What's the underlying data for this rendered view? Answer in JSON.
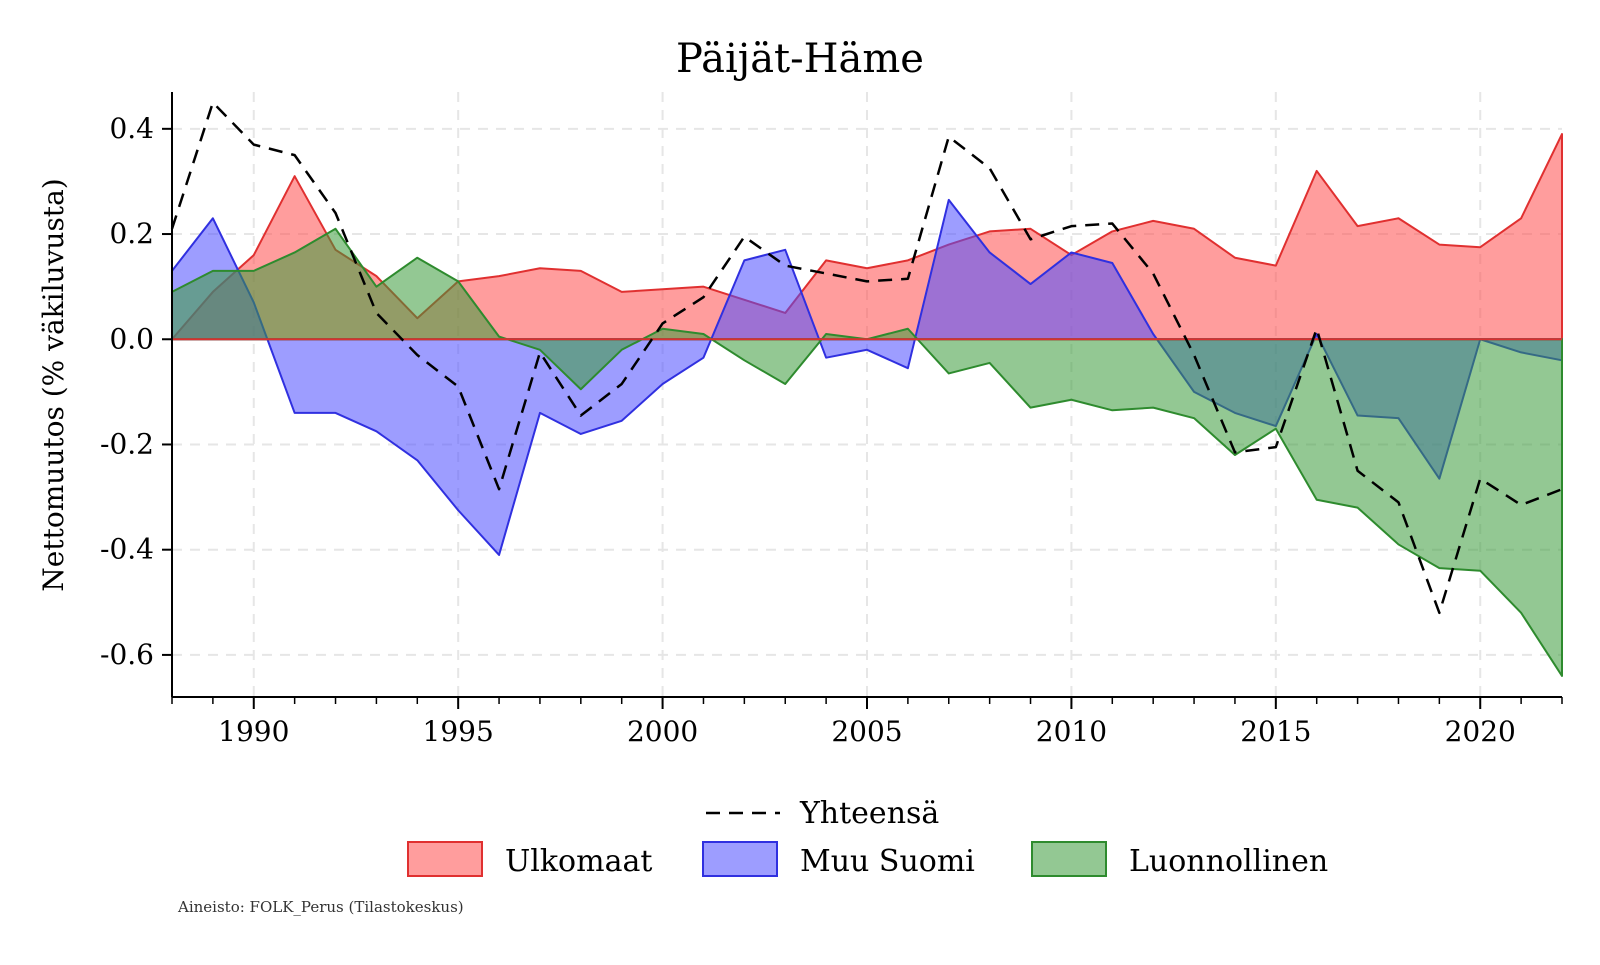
{
  "chart_data": {
    "type": "area",
    "title": "Päijät-Häme",
    "xlabel": "",
    "ylabel": "Nettomuutos (% väkiluvusta)",
    "source": "Aineisto: FOLK_Perus (Tilastokeskus)",
    "xlim": [
      1988,
      2022
    ],
    "ylim": [
      -0.68,
      0.47
    ],
    "x_ticks": [
      1990,
      1995,
      2000,
      2005,
      2010,
      2015,
      2020
    ],
    "y_ticks": [
      -0.6,
      -0.4,
      -0.2,
      0.0,
      0.2,
      0.4
    ],
    "y_tick_labels": [
      "-0.6",
      "-0.4",
      "-0.2",
      "0.0",
      "0.2",
      "0.4"
    ],
    "grid": true,
    "legend_position": "bottom",
    "x": [
      1988,
      1989,
      1990,
      1991,
      1992,
      1993,
      1994,
      1995,
      1996,
      1997,
      1998,
      1999,
      2000,
      2001,
      2002,
      2003,
      2004,
      2005,
      2006,
      2007,
      2008,
      2009,
      2010,
      2011,
      2012,
      2013,
      2014,
      2015,
      2016,
      2017,
      2018,
      2019,
      2020,
      2021,
      2022
    ],
    "series": [
      {
        "name": "Ulkomaat",
        "kind": "area",
        "fill": "#ff4d4d",
        "stroke": "#e03030",
        "values": [
          0.0,
          0.09,
          0.16,
          0.31,
          0.17,
          0.12,
          0.04,
          0.11,
          0.12,
          0.135,
          0.13,
          0.09,
          0.095,
          0.1,
          0.075,
          0.05,
          0.15,
          0.135,
          0.15,
          0.18,
          0.205,
          0.21,
          0.16,
          0.205,
          0.225,
          0.21,
          0.155,
          0.14,
          0.32,
          0.215,
          0.23,
          0.18,
          0.175,
          0.23,
          0.39
        ]
      },
      {
        "name": "Muu Suomi",
        "kind": "area",
        "fill": "#4d4dff",
        "stroke": "#3030e0",
        "values": [
          0.13,
          0.23,
          0.07,
          -0.14,
          -0.14,
          -0.175,
          -0.23,
          -0.325,
          -0.41,
          -0.14,
          -0.18,
          -0.155,
          -0.085,
          -0.035,
          0.15,
          0.17,
          -0.035,
          -0.02,
          -0.055,
          0.265,
          0.165,
          0.105,
          0.165,
          0.145,
          0.01,
          -0.1,
          -0.14,
          -0.165,
          0.01,
          -0.145,
          -0.15,
          -0.265,
          0.0,
          -0.025,
          -0.04
        ]
      },
      {
        "name": "Luonnollinen",
        "kind": "area",
        "fill": "#3a9a3a",
        "stroke": "#2e8b2e",
        "values": [
          0.09,
          0.13,
          0.13,
          0.165,
          0.21,
          0.1,
          0.155,
          0.11,
          0.005,
          -0.02,
          -0.095,
          -0.02,
          0.02,
          0.01,
          -0.04,
          -0.085,
          0.01,
          0.0,
          0.02,
          -0.065,
          -0.045,
          -0.13,
          -0.115,
          -0.135,
          -0.13,
          -0.15,
          -0.22,
          -0.17,
          -0.305,
          -0.32,
          -0.39,
          -0.435,
          -0.44,
          -0.52,
          -0.64
        ]
      },
      {
        "name": "Yhteensä",
        "kind": "line",
        "stroke": "#000000",
        "values": [
          0.21,
          0.45,
          0.37,
          0.35,
          0.24,
          0.05,
          -0.03,
          -0.09,
          -0.285,
          -0.025,
          -0.145,
          -0.085,
          0.03,
          0.08,
          0.195,
          0.14,
          0.125,
          0.11,
          0.115,
          0.385,
          0.325,
          0.19,
          0.215,
          0.22,
          0.125,
          -0.03,
          -0.215,
          -0.205,
          0.02,
          -0.25,
          -0.31,
          -0.52,
          -0.265,
          -0.315,
          -0.285
        ]
      }
    ]
  }
}
